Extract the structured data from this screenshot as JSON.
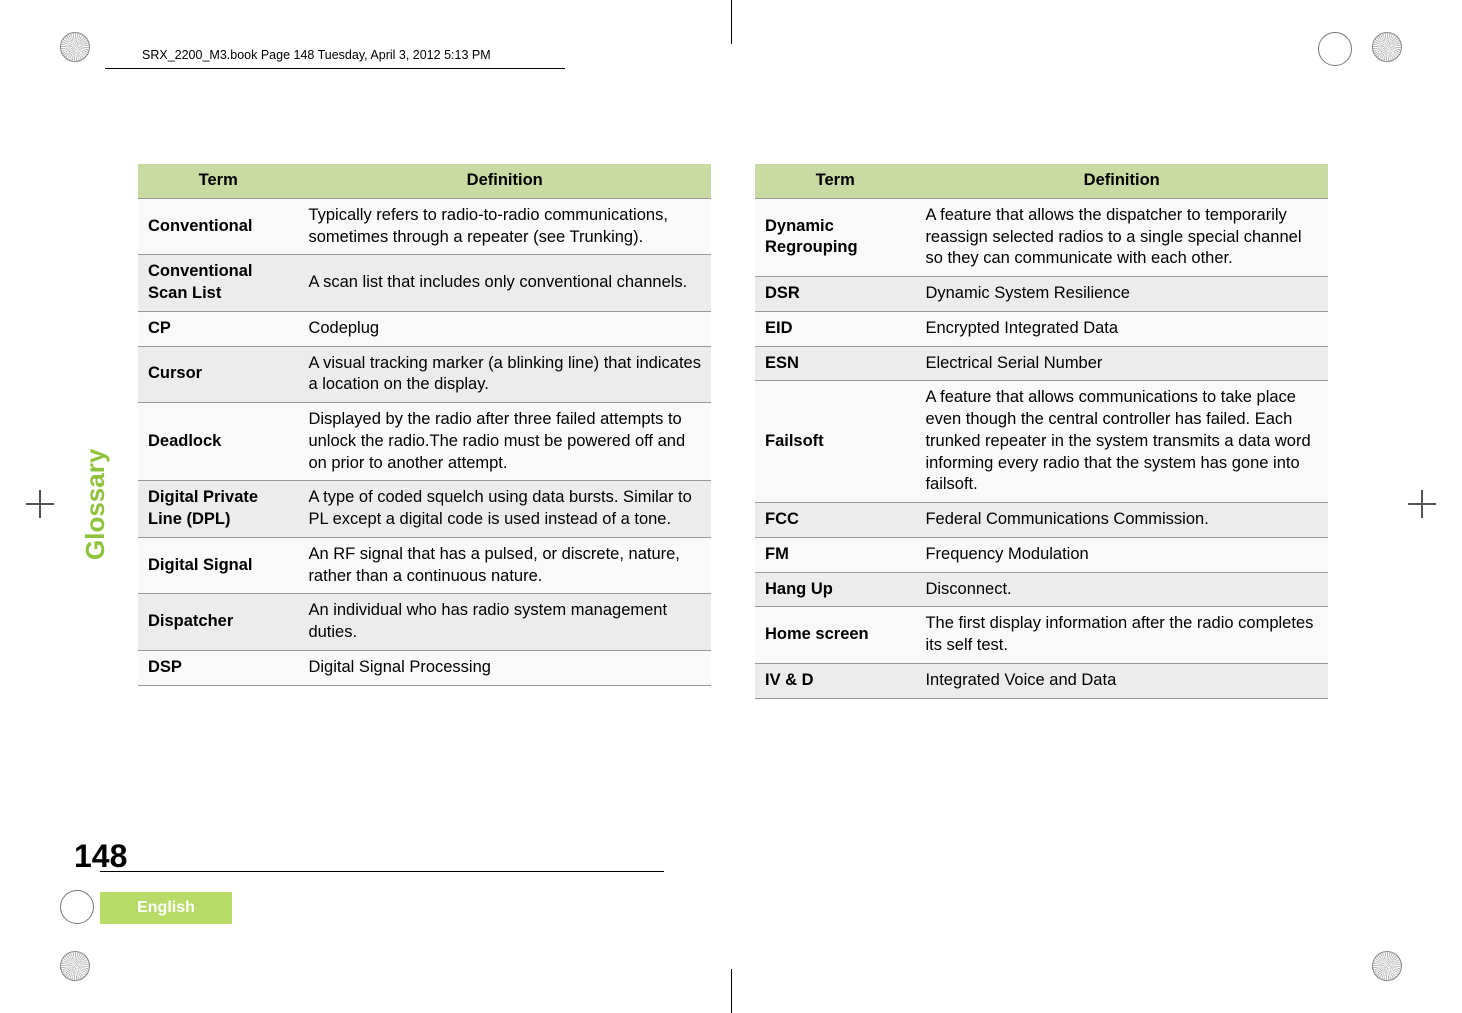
{
  "header_text": "SRX_2200_M3.book  Page 148  Tuesday, April 3, 2012  5:13 PM",
  "sidebar_label": "Glossary",
  "page_number": "148",
  "language_label": "English",
  "table_headers": {
    "term": "Term",
    "definition": "Definition"
  },
  "left_rows": [
    {
      "term": "Conventional",
      "def": "Typically refers to radio-to-radio communications, sometimes through a repeater (see Trunking)."
    },
    {
      "term": "Conventional Scan List",
      "def": "A scan list that includes only conventional channels."
    },
    {
      "term": "CP",
      "def": "Codeplug"
    },
    {
      "term": "Cursor",
      "def": "A visual tracking marker (a blinking line) that indicates a location on the display."
    },
    {
      "term": "Deadlock",
      "def": "Displayed by the radio after three failed attempts to unlock the radio.The radio must be powered off and on prior to another attempt."
    },
    {
      "term": "Digital Private Line (DPL)",
      "def": "A type of coded squelch using data bursts. Similar to PL except a digital code is used instead of a tone."
    },
    {
      "term": "Digital Signal",
      "def": "An RF signal that has a pulsed, or discrete, nature, rather than a continuous nature."
    },
    {
      "term": "Dispatcher",
      "def": "An individual who has radio system management duties."
    },
    {
      "term": "DSP",
      "def": "Digital Signal Processing"
    }
  ],
  "right_rows": [
    {
      "term": "Dynamic Regrouping",
      "def": "A feature that allows the dispatcher to temporarily reassign selected radios to a single special channel so they can communicate with each other."
    },
    {
      "term": "DSR",
      "def": "Dynamic System Resilience"
    },
    {
      "term": "EID",
      "def": "Encrypted Integrated Data"
    },
    {
      "term": "ESN",
      "def": "Electrical Serial Number"
    },
    {
      "term": "Failsoft",
      "def": "A feature that allows communications to take place even though the central controller has failed. Each trunked repeater in the system transmits a data word informing every radio that the system has gone into failsoft."
    },
    {
      "term": "FCC",
      "def": "Federal Communications Commission."
    },
    {
      "term": "FM",
      "def": "Frequency Modulation"
    },
    {
      "term": "Hang Up",
      "def": "Disconnect."
    },
    {
      "term": "Home screen",
      "def": "The first display information after the radio completes its self test."
    },
    {
      "term": "IV & D",
      "def": "Integrated Voice and Data"
    }
  ],
  "colors": {
    "header_bg": "#c9dba2",
    "row_odd": "#f9f9f9",
    "row_even": "#ececec",
    "border": "#999999",
    "accent": "#8fc33b",
    "lang_bg": "#b7db67"
  }
}
